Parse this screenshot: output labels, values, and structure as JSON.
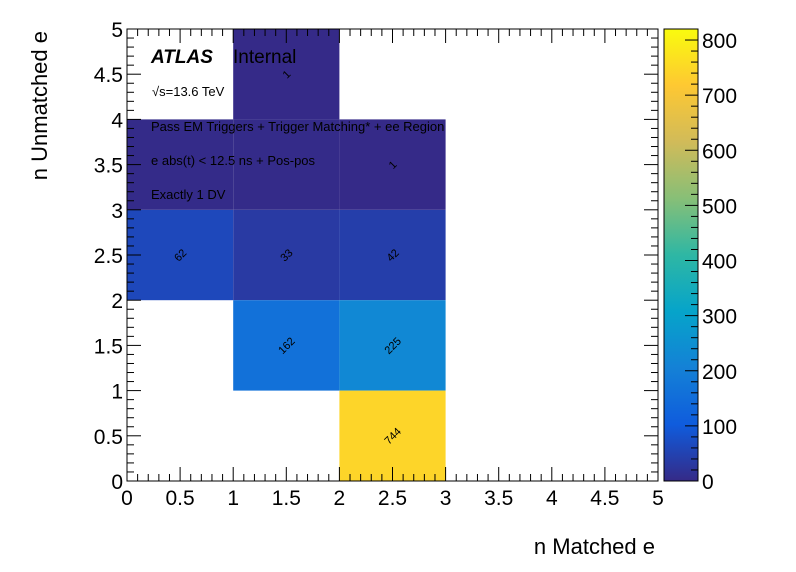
{
  "chart_data": {
    "type": "heatmap",
    "xlabel": "n Matched e",
    "ylabel": "n Unmatched e",
    "xlim": [
      0,
      5
    ],
    "ylim": [
      0,
      5
    ],
    "x_ticks": [
      "0",
      "0.5",
      "1",
      "1.5",
      "2",
      "2.5",
      "3",
      "3.5",
      "4",
      "4.5",
      "5"
    ],
    "y_ticks": [
      "0",
      "0.5",
      "1",
      "1.5",
      "2",
      "2.5",
      "3",
      "3.5",
      "4",
      "4.5",
      "5"
    ],
    "colorbar": {
      "min": 0,
      "max": 820,
      "ticks": [
        "0",
        "100",
        "200",
        "300",
        "400",
        "500",
        "600",
        "700",
        "800"
      ]
    },
    "cells": [
      {
        "x": [
          0,
          1
        ],
        "y": [
          2,
          3
        ],
        "value": 62,
        "label": "62"
      },
      {
        "x": [
          1,
          2
        ],
        "y": [
          2,
          3
        ],
        "value": 33,
        "label": "33"
      },
      {
        "x": [
          2,
          3
        ],
        "y": [
          2,
          3
        ],
        "value": 42,
        "label": "42"
      },
      {
        "x": [
          0,
          1
        ],
        "y": [
          3,
          4
        ],
        "value": 2,
        "label": ""
      },
      {
        "x": [
          1,
          2
        ],
        "y": [
          3,
          4
        ],
        "value": 2,
        "label": ""
      },
      {
        "x": [
          2,
          3
        ],
        "y": [
          3,
          4
        ],
        "value": 1,
        "label": "1"
      },
      {
        "x": [
          1,
          2
        ],
        "y": [
          1,
          2
        ],
        "value": 162,
        "label": "162"
      },
      {
        "x": [
          2,
          3
        ],
        "y": [
          1,
          2
        ],
        "value": 225,
        "label": "225"
      },
      {
        "x": [
          2,
          3
        ],
        "y": [
          0,
          1
        ],
        "value": 744,
        "label": "744"
      },
      {
        "x": [
          1,
          2
        ],
        "y": [
          4,
          5
        ],
        "value": 1,
        "label": "1"
      }
    ],
    "annotations": {
      "atlas": "ATLAS",
      "internal": "Internal",
      "energy": "√s=13.6 TeV",
      "line1": "Pass EM Triggers + Trigger Matching* + ee Region",
      "line2": "e abs(t) < 12.5 ns + Pos-pos",
      "line3": "Exactly 1 DV"
    }
  }
}
